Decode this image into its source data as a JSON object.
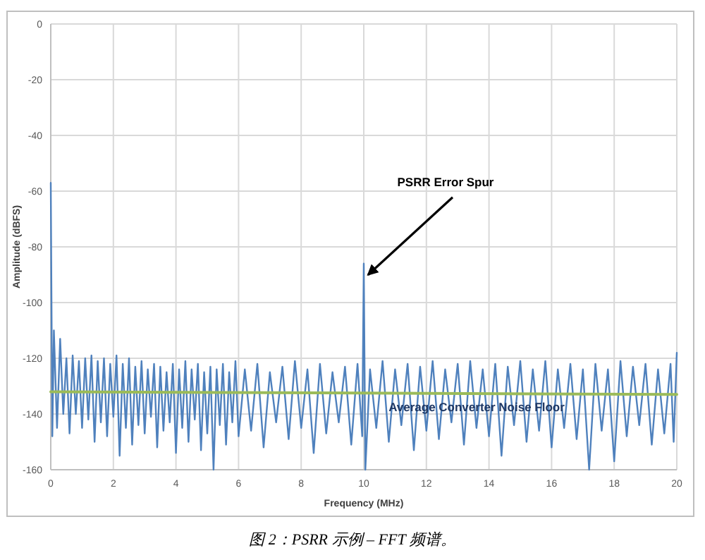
{
  "chart_data": {
    "type": "line",
    "xlabel": "Frequency (MHz)",
    "ylabel": "Amplitude (dBFS)",
    "xlim": [
      0,
      20
    ],
    "xticks": [
      0,
      2,
      4,
      6,
      8,
      10,
      12,
      14,
      16,
      18,
      20
    ],
    "ylim": [
      -160,
      0
    ],
    "yticks": [
      -160,
      -140,
      -120,
      -100,
      -80,
      -60,
      -40,
      -20,
      0
    ],
    "grid": true,
    "series": [
      {
        "color": "#4f81bd",
        "x": [
          0,
          0.05,
          0.1,
          0.2,
          0.3,
          0.4,
          0.5,
          0.6,
          0.7,
          0.8,
          0.9,
          1.0,
          1.1,
          1.2,
          1.3,
          1.4,
          1.5,
          1.6,
          1.7,
          1.8,
          1.9,
          2.0,
          2.1,
          2.2,
          2.3,
          2.4,
          2.5,
          2.6,
          2.7,
          2.8,
          2.9,
          3.0,
          3.1,
          3.2,
          3.3,
          3.4,
          3.5,
          3.6,
          3.7,
          3.8,
          3.9,
          4.0,
          4.1,
          4.2,
          4.3,
          4.4,
          4.5,
          4.6,
          4.7,
          4.8,
          4.9,
          5.0,
          5.1,
          5.2,
          5.3,
          5.4,
          5.5,
          5.6,
          5.7,
          5.8,
          5.9,
          6.0,
          6.2,
          6.4,
          6.6,
          6.8,
          7.0,
          7.2,
          7.4,
          7.6,
          7.8,
          8.0,
          8.2,
          8.4,
          8.6,
          8.8,
          9.0,
          9.2,
          9.4,
          9.6,
          9.8,
          9.95,
          10.0,
          10.05,
          10.2,
          10.4,
          10.6,
          10.8,
          11.0,
          11.2,
          11.4,
          11.6,
          11.8,
          12.0,
          12.2,
          12.4,
          12.6,
          12.8,
          13.0,
          13.2,
          13.4,
          13.6,
          13.8,
          14.0,
          14.2,
          14.4,
          14.6,
          14.8,
          15.0,
          15.2,
          15.4,
          15.6,
          15.8,
          16.0,
          16.2,
          16.4,
          16.6,
          16.8,
          17.0,
          17.2,
          17.4,
          17.6,
          17.8,
          18.0,
          18.2,
          18.4,
          18.6,
          18.8,
          19.0,
          19.2,
          19.4,
          19.6,
          19.8,
          19.9,
          20.0
        ],
        "values": [
          -57,
          -148,
          -110,
          -145,
          -113,
          -140,
          -120,
          -147,
          -119,
          -140,
          -121,
          -145,
          -120,
          -142,
          -119,
          -150,
          -121,
          -143,
          -120,
          -148,
          -122,
          -141,
          -119,
          -155,
          -122,
          -145,
          -120,
          -151,
          -123,
          -144,
          -121,
          -147,
          -124,
          -141,
          -122,
          -152,
          -123,
          -146,
          -125,
          -143,
          -122,
          -154,
          -124,
          -145,
          -121,
          -150,
          -124,
          -142,
          -122,
          -153,
          -125,
          -147,
          -123,
          -160,
          -124,
          -144,
          -122,
          -151,
          -125,
          -143,
          -121,
          -148,
          -124,
          -146,
          -122,
          -152,
          -125,
          -143,
          -123,
          -149,
          -121,
          -145,
          -124,
          -154,
          -122,
          -147,
          -125,
          -143,
          -123,
          -151,
          -122,
          -148,
          -86,
          -160,
          -124,
          -145,
          -121,
          -150,
          -124,
          -144,
          -122,
          -153,
          -123,
          -146,
          -121,
          -149,
          -124,
          -143,
          -122,
          -151,
          -121,
          -145,
          -124,
          -148,
          -122,
          -155,
          -123,
          -144,
          -121,
          -150,
          -124,
          -146,
          -121,
          -152,
          -124,
          -145,
          -122,
          -149,
          -124,
          -160,
          -122,
          -146,
          -124,
          -157,
          -121,
          -148,
          -123,
          -144,
          -122,
          -151,
          -124,
          -147,
          -122,
          -150,
          -118
        ]
      },
      {
        "name": "Average Converter Noise Floor",
        "color": "#9bbb59",
        "x": [
          0,
          20
        ],
        "values": [
          -132,
          -133
        ]
      }
    ],
    "annotations": [
      {
        "text": "PSRR Error Spur",
        "x": 10,
        "y": -86
      },
      "图 2：PSRR 示例 – FFT 频谱。"
    ]
  }
}
